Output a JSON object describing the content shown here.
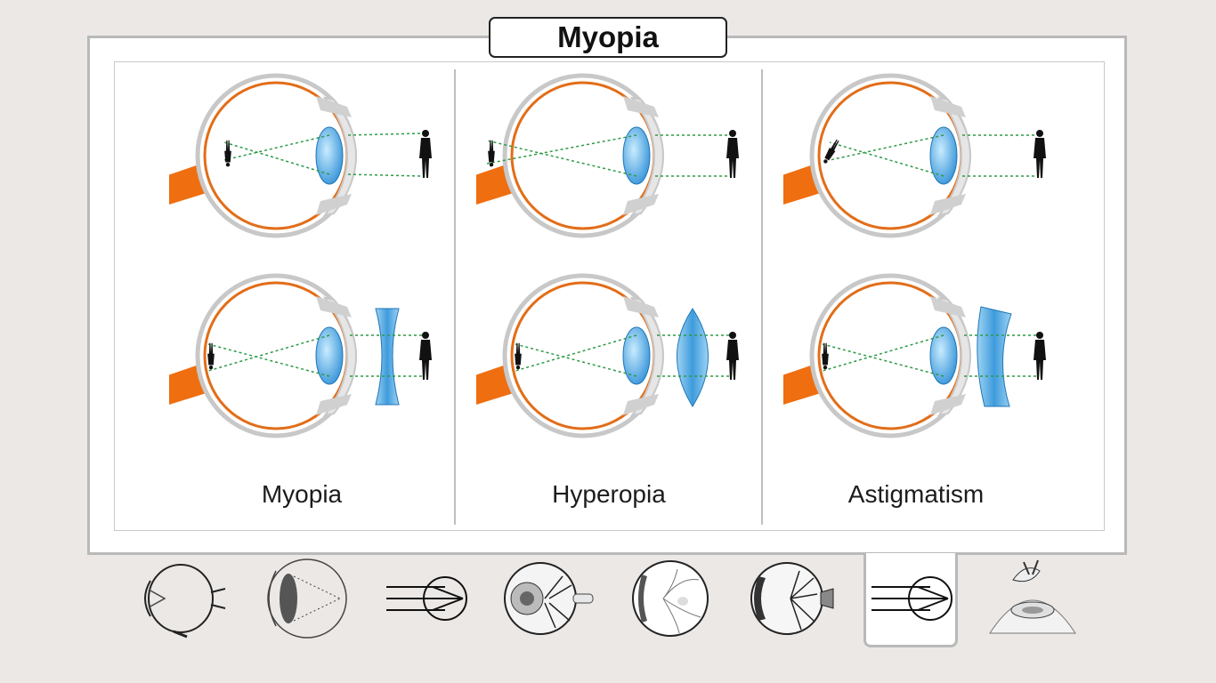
{
  "page": {
    "title": "Myopia"
  },
  "columns": [
    {
      "label": "Myopia",
      "top_condition": "myopia",
      "correction": "concave"
    },
    {
      "label": "Hyperopia",
      "top_condition": "hyperopia",
      "correction": "convex"
    },
    {
      "label": "Astigmatism",
      "top_condition": "astigmatism",
      "correction": "cylindrical"
    }
  ],
  "thumbnails": [
    {
      "icon": "eye-cross-section-icon",
      "selected": false
    },
    {
      "icon": "eye-lens-ray-icon",
      "selected": false
    },
    {
      "icon": "ray-lens-icon",
      "selected": false
    },
    {
      "icon": "eye-retina-vessels-icon",
      "selected": false
    },
    {
      "icon": "fundus-icon",
      "selected": false
    },
    {
      "icon": "eyeball-vessels-icon",
      "selected": false
    },
    {
      "icon": "ray-lens-icon",
      "selected": true
    },
    {
      "icon": "contact-lens-icon",
      "selected": false
    }
  ],
  "colors": {
    "sclera_line": "#c8c8c8",
    "retina": "#e26d18",
    "optic_nerve": "#ef6e10",
    "lens": "#4aa3df",
    "ray": "#2c9b45",
    "figure": "#111111",
    "frame": "#b9b9b9",
    "background": "#ebe8e6"
  }
}
